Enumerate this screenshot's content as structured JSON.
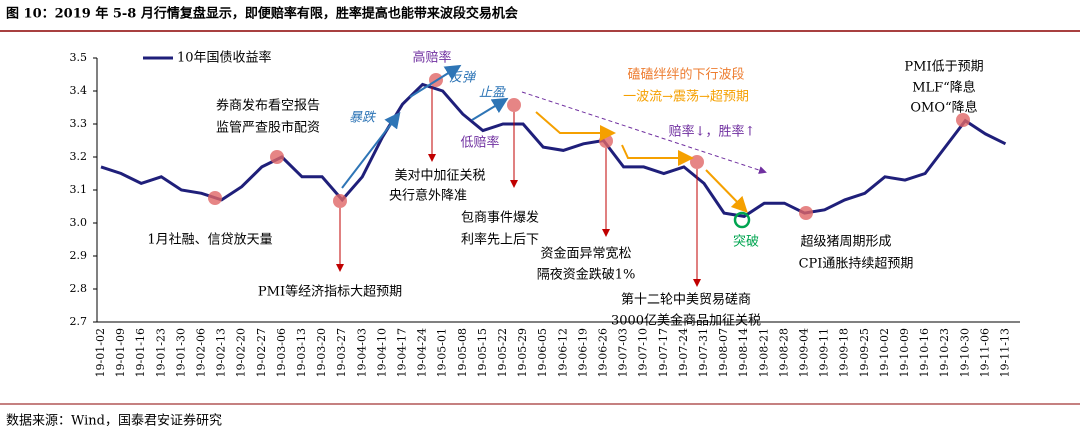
{
  "chart_data": {
    "type": "line",
    "title": "图 10：2019 年 5-8 月行情复盘显示，即便赔率有限，胜率提高也能带来波段交易机会",
    "source": "数据来源：Wind，国泰君安证券研究",
    "categories": [
      "19-01-02",
      "19-01-09",
      "19-01-16",
      "19-01-23",
      "19-01-30",
      "19-02-06",
      "19-02-13",
      "19-02-20",
      "19-02-27",
      "19-03-06",
      "19-03-13",
      "19-03-20",
      "19-03-27",
      "19-04-03",
      "19-04-10",
      "19-04-17",
      "19-04-24",
      "19-05-01",
      "19-05-08",
      "19-05-15",
      "19-05-22",
      "19-05-29",
      "19-06-05",
      "19-06-12",
      "19-06-19",
      "19-06-26",
      "19-07-03",
      "19-07-10",
      "19-07-17",
      "19-07-24",
      "19-07-31",
      "19-08-07",
      "19-08-14",
      "19-08-21",
      "19-08-28",
      "19-09-04",
      "19-09-11",
      "19-09-18",
      "19-09-25",
      "19-10-02",
      "19-10-09",
      "19-10-16",
      "19-10-23",
      "19-10-30",
      "19-11-06",
      "19-11-13"
    ],
    "series": [
      {
        "name": "10年国债收益率",
        "color": "#1f1f7a",
        "values": [
          3.17,
          3.15,
          3.12,
          3.14,
          3.1,
          3.09,
          3.07,
          3.11,
          3.17,
          3.2,
          3.14,
          3.14,
          3.07,
          3.14,
          3.26,
          3.36,
          3.42,
          3.4,
          3.33,
          3.28,
          3.3,
          3.3,
          3.23,
          3.22,
          3.24,
          3.25,
          3.17,
          3.17,
          3.15,
          3.17,
          3.12,
          3.03,
          3.02,
          3.06,
          3.06,
          3.03,
          3.04,
          3.07,
          3.09,
          3.14,
          3.13,
          3.15,
          3.23,
          3.31,
          3.27,
          3.24
        ]
      }
    ],
    "ylim": [
      2.7,
      3.5
    ],
    "yticks": [
      2.7,
      2.8,
      2.9,
      {
        "value": 3,
        "label": "3.0"
      },
      3.1,
      3.2,
      3.3,
      3.4,
      3.5
    ],
    "annotations": [
      {
        "text": "高赔率",
        "color": "#7030a0"
      },
      {
        "text": "暴跌",
        "color": "#2e75b6"
      },
      {
        "text": "反弹",
        "color": "#2e75b6"
      },
      {
        "text": "止盈",
        "color": "#2e75b6"
      },
      {
        "text": "低赔率",
        "color": "#7030a0"
      },
      {
        "text": "磕磕绊绊的下行波段",
        "color": "#ed7d31"
      },
      {
        "text": "一波流→震荡→超预期",
        "color": "#f5a000"
      },
      {
        "text": "赔率↓，胜率↑",
        "color": "#7030a0"
      },
      {
        "text": "券商发布看空报告",
        "color": "#000000"
      },
      {
        "text": "监管严查股市配资",
        "color": "#000000"
      },
      {
        "text": "美对中加征关税",
        "color": "#000000"
      },
      {
        "text": "央行意外降准",
        "color": "#000000"
      },
      {
        "text": "包商事件爆发",
        "color": "#000000"
      },
      {
        "text": "利率先上后下",
        "color": "#000000"
      },
      {
        "text": "资金面异常宽松",
        "color": "#000000"
      },
      {
        "text": "隔夜资金跌破1%",
        "color": "#000000"
      },
      {
        "text": "第十二轮中美贸易磋商",
        "color": "#000000"
      },
      {
        "text": "3000亿美金商品加征关税",
        "color": "#000000"
      },
      {
        "text": "突破",
        "color": "#00a550"
      },
      {
        "text": "超级猪周期形成",
        "color": "#000000"
      },
      {
        "text": "CPI通胀持续超预期",
        "color": "#000000"
      },
      {
        "text": "PMI低于预期",
        "color": "#000000"
      },
      {
        "text": "MLF“降息",
        "color": "#000000"
      },
      {
        "text": "OMO“降息",
        "color": "#000000"
      },
      {
        "text": "1月社融、信贷放天量",
        "color": "#000000"
      },
      {
        "text": "PMI等经济指标大超预期",
        "color": "#000000"
      }
    ]
  }
}
